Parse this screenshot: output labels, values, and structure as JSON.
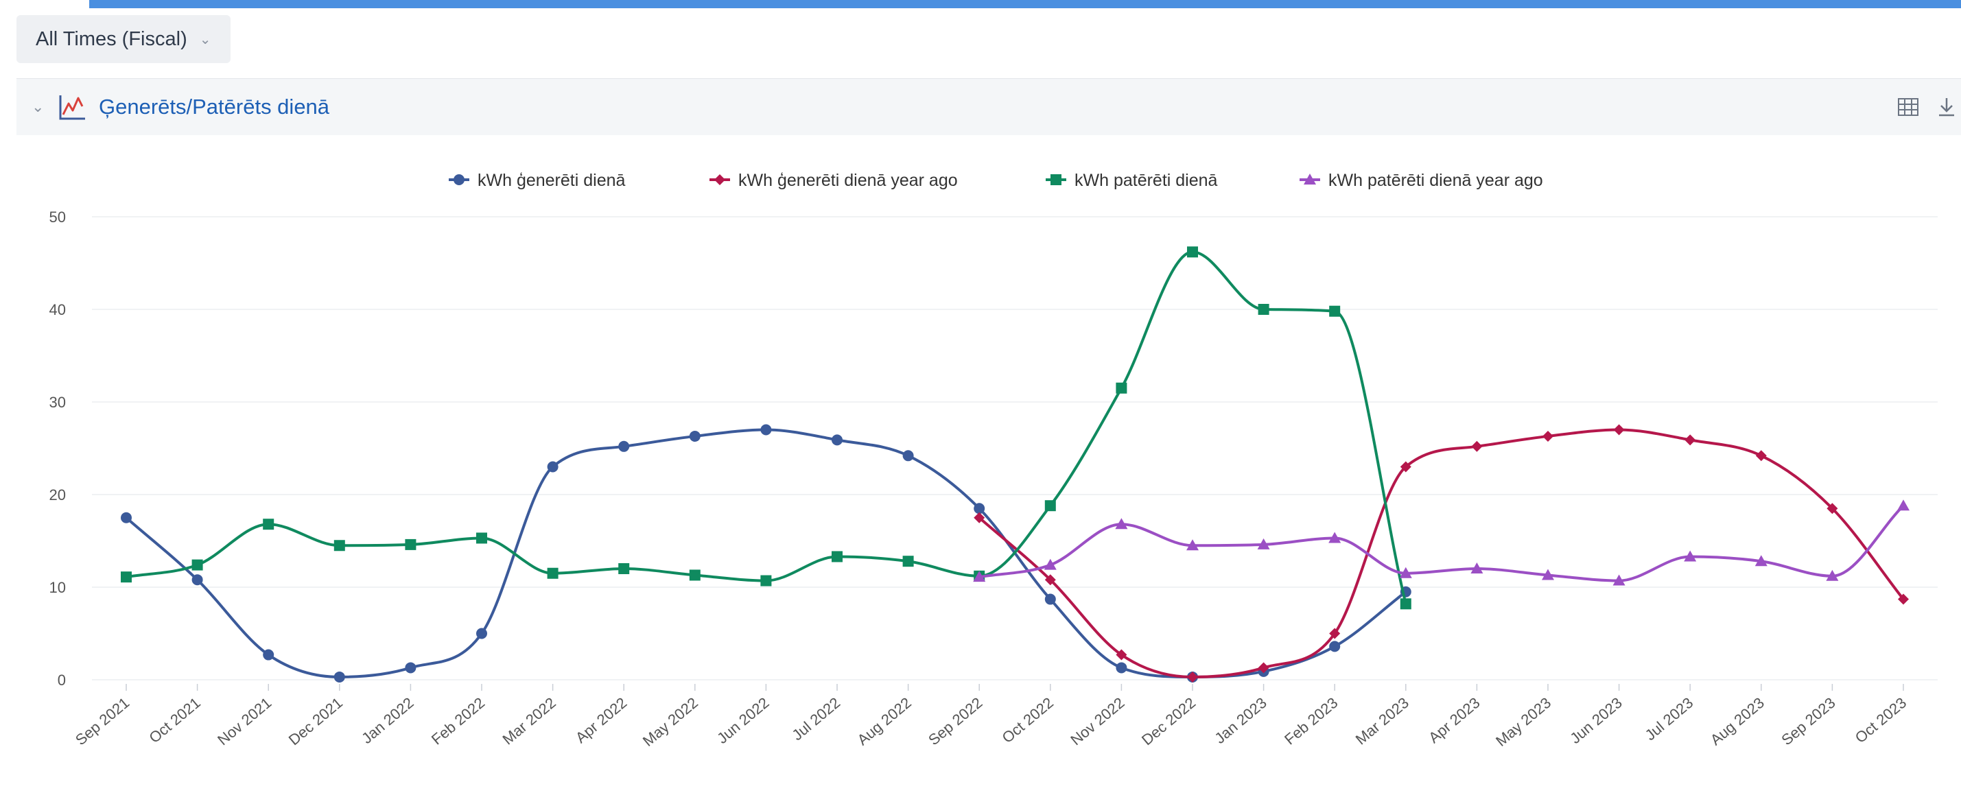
{
  "filter": {
    "label": "All Times (Fiscal)",
    "chevron_icon": "chevron-down-icon"
  },
  "panel": {
    "title": "Ģenerēts/Patērēts dienā",
    "collapse_icon": "chevron-down-icon",
    "chart_icon": "line-chart-icon",
    "tools": [
      "table-icon",
      "download-icon"
    ]
  },
  "colors": {
    "accent": "#4a8fe0",
    "title": "#1d5fb5",
    "series": [
      "#3b5a9a",
      "#b5174b",
      "#0f8a5f",
      "#9b4fc4"
    ]
  },
  "chart_data": {
    "type": "line",
    "categories": [
      "Sep 2021",
      "Oct 2021",
      "Nov 2021",
      "Dec 2021",
      "Jan 2022",
      "Feb 2022",
      "Mar 2022",
      "Apr 2022",
      "May 2022",
      "Jun 2022",
      "Jul 2022",
      "Aug 2022",
      "Sep 2022",
      "Oct 2022",
      "Nov 2022",
      "Dec 2022",
      "Jan 2023",
      "Feb 2023",
      "Mar 2023",
      "Apr 2023",
      "May 2023",
      "Jun 2023",
      "Jul 2023",
      "Aug 2023",
      "Sep 2023",
      "Oct 2023"
    ],
    "ylim": [
      0,
      50
    ],
    "yticks": [
      0,
      10,
      20,
      30,
      40,
      50
    ],
    "legend_position": "top",
    "grid": true,
    "series": [
      {
        "name": "kWh ģenerēti dienā",
        "marker": "circle",
        "values": [
          17.5,
          10.8,
          2.7,
          0.3,
          1.3,
          5,
          23,
          25.2,
          26.3,
          27,
          25.9,
          24.2,
          18.5,
          8.7,
          1.3,
          0.3,
          0.9,
          3.6,
          9.5,
          null,
          null,
          null,
          null,
          null,
          null,
          null
        ]
      },
      {
        "name": "kWh ģenerēti dienā year ago",
        "marker": "diamond",
        "values": [
          null,
          null,
          null,
          null,
          null,
          null,
          null,
          null,
          null,
          null,
          null,
          null,
          17.5,
          10.8,
          2.7,
          0.3,
          1.3,
          5,
          23,
          25.2,
          26.3,
          27,
          25.9,
          24.2,
          18.5,
          8.7
        ]
      },
      {
        "name": "kWh patērēti dienā",
        "marker": "square",
        "values": [
          11.1,
          12.4,
          16.8,
          14.5,
          14.6,
          15.3,
          11.5,
          12,
          11.3,
          10.7,
          13.3,
          12.8,
          11.2,
          18.8,
          31.5,
          46.2,
          40,
          39.8,
          8.2,
          null,
          null,
          null,
          null,
          null,
          null,
          null
        ]
      },
      {
        "name": "kWh patērēti dienā year ago",
        "marker": "triangle",
        "values": [
          null,
          null,
          null,
          null,
          null,
          null,
          null,
          null,
          null,
          null,
          null,
          null,
          11.1,
          12.4,
          16.8,
          14.5,
          14.6,
          15.3,
          11.5,
          12,
          11.3,
          10.7,
          13.3,
          12.8,
          11.2,
          18.8
        ]
      }
    ]
  }
}
